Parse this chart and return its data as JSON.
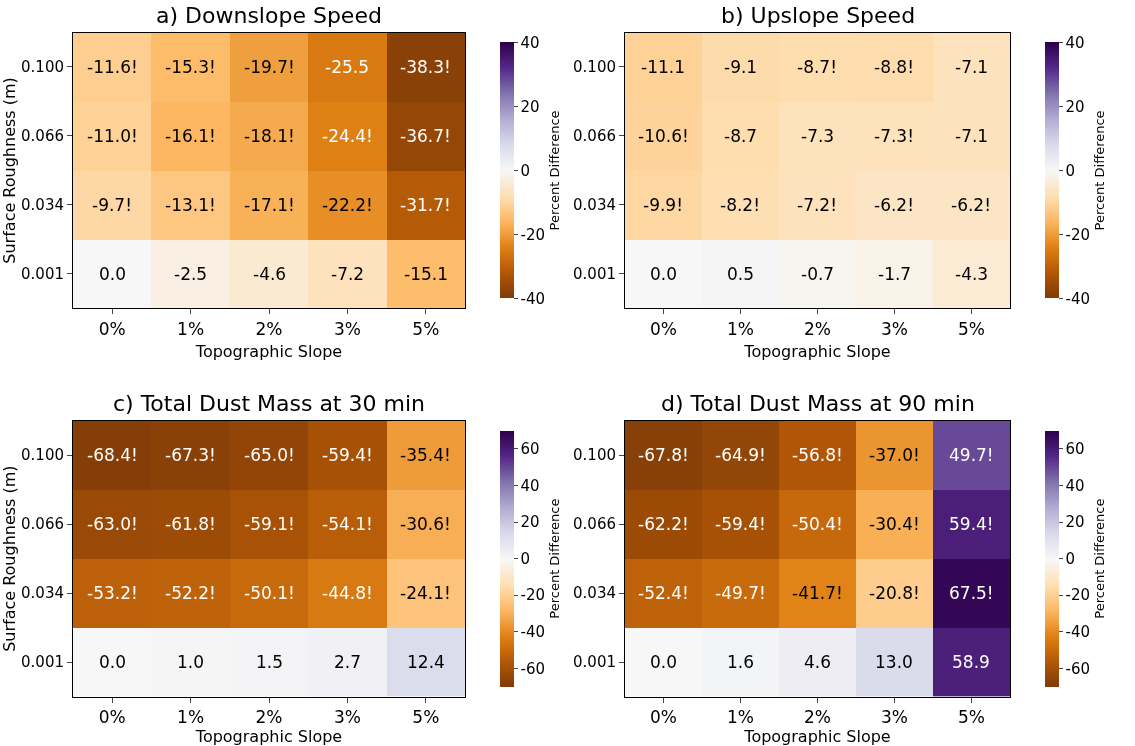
{
  "chart_data": [
    {
      "type": "heatmap",
      "title": "a) Downslope Speed",
      "xlabel": "Topographic Slope",
      "ylabel": "Surface Roughness (m)",
      "clabel": "Percent Difference",
      "categories": [
        "0%",
        "1%",
        "2%",
        "3%",
        "5%"
      ],
      "y_categories": [
        "0.100",
        "0.066",
        "0.034",
        "0.001"
      ],
      "cells": [
        [
          -11.6,
          -15.3,
          -19.7,
          -25.5,
          -38.3
        ],
        [
          -11.0,
          -16.1,
          -18.1,
          -24.4,
          -36.7
        ],
        [
          -9.7,
          -13.1,
          -17.1,
          -22.2,
          -31.7
        ],
        [
          0.0,
          -2.5,
          -4.6,
          -7.2,
          -15.1
        ]
      ],
      "cell_labels": [
        [
          "-11.6!",
          "-15.3!",
          "-19.7!",
          "-25.5",
          "-38.3!"
        ],
        [
          "-11.0!",
          "-16.1!",
          "-18.1!",
          "-24.4!",
          "-36.7!"
        ],
        [
          "-9.7!",
          "-13.1!",
          "-17.1!",
          "-22.2!",
          "-31.7!"
        ],
        [
          "0.0",
          "-2.5",
          "-4.6",
          "-7.2",
          "-15.1"
        ]
      ],
      "clim": [
        -40,
        40
      ],
      "cticks": [
        -40,
        -20,
        0,
        20,
        40
      ]
    },
    {
      "type": "heatmap",
      "title": "b) Upslope Speed",
      "xlabel": "Topographic Slope",
      "clabel": "Percent Difference",
      "categories": [
        "0%",
        "1%",
        "2%",
        "3%",
        "5%"
      ],
      "y_categories": [
        "0.100",
        "0.066",
        "0.034",
        "0.001"
      ],
      "cells": [
        [
          -11.1,
          -9.1,
          -8.7,
          -8.8,
          -7.1
        ],
        [
          -10.6,
          -8.7,
          -7.3,
          -7.3,
          -7.1
        ],
        [
          -9.9,
          -8.2,
          -7.2,
          -6.2,
          -6.2
        ],
        [
          0.0,
          0.5,
          -0.7,
          -1.7,
          -4.3
        ]
      ],
      "cell_labels": [
        [
          "-11.1",
          "-9.1",
          "-8.7!",
          "-8.8!",
          "-7.1"
        ],
        [
          "-10.6!",
          "-8.7",
          "-7.3",
          "-7.3!",
          "-7.1"
        ],
        [
          "-9.9!",
          "-8.2!",
          "-7.2!",
          "-6.2!",
          "-6.2!"
        ],
        [
          "0.0",
          "0.5",
          "-0.7",
          "-1.7",
          "-4.3"
        ]
      ],
      "clim": [
        -40,
        40
      ],
      "cticks": [
        -40,
        -20,
        0,
        20,
        40
      ]
    },
    {
      "type": "heatmap",
      "title": "c) Total Dust Mass at 30 min",
      "xlabel": "Topographic Slope",
      "ylabel": "Surface Roughness (m)",
      "clabel": "Percent Difference",
      "categories": [
        "0%",
        "1%",
        "2%",
        "3%",
        "5%"
      ],
      "y_categories": [
        "0.100",
        "0.066",
        "0.034",
        "0.001"
      ],
      "cells": [
        [
          -68.4,
          -67.3,
          -65.0,
          -59.4,
          -35.4
        ],
        [
          -63.0,
          -61.8,
          -59.1,
          -54.1,
          -30.6
        ],
        [
          -53.2,
          -52.2,
          -50.1,
          -44.8,
          -24.1
        ],
        [
          0.0,
          1.0,
          1.5,
          2.7,
          12.4
        ]
      ],
      "cell_labels": [
        [
          "-68.4!",
          "-67.3!",
          "-65.0!",
          "-59.4!",
          "-35.4!"
        ],
        [
          "-63.0!",
          "-61.8!",
          "-59.1!",
          "-54.1!",
          "-30.6!"
        ],
        [
          "-53.2!",
          "-52.2!",
          "-50.1!",
          "-44.8!",
          "-24.1!"
        ],
        [
          "0.0",
          "1.0",
          "1.5",
          "2.7",
          "12.4"
        ]
      ],
      "clim": [
        -70,
        70
      ],
      "cticks": [
        -60,
        -40,
        -20,
        0,
        20,
        40,
        60
      ]
    },
    {
      "type": "heatmap",
      "title": "d) Total Dust Mass at 90 min",
      "xlabel": "Topographic Slope",
      "clabel": "Percent Difference",
      "categories": [
        "0%",
        "1%",
        "2%",
        "3%",
        "5%"
      ],
      "y_categories": [
        "0.100",
        "0.066",
        "0.034",
        "0.001"
      ],
      "cells": [
        [
          -67.8,
          -64.9,
          -56.8,
          -37.0,
          49.7
        ],
        [
          -62.2,
          -59.4,
          -50.4,
          -30.4,
          59.4
        ],
        [
          -52.4,
          -49.7,
          -41.7,
          -20.8,
          67.5
        ],
        [
          0.0,
          1.6,
          4.6,
          13.0,
          58.9
        ]
      ],
      "cell_labels": [
        [
          "-67.8!",
          "-64.9!",
          "-56.8!",
          "-37.0!",
          "49.7!"
        ],
        [
          "-62.2!",
          "-59.4!",
          "-50.4!",
          "-30.4!",
          "59.4!"
        ],
        [
          "-52.4!",
          "-49.7!",
          "-41.7!",
          "-20.8!",
          "67.5!"
        ],
        [
          "0.0",
          "1.6",
          "4.6",
          "13.0",
          "58.9"
        ]
      ],
      "clim": [
        -70,
        70
      ],
      "cticks": [
        -60,
        -40,
        -20,
        0,
        20,
        40,
        60
      ]
    }
  ]
}
